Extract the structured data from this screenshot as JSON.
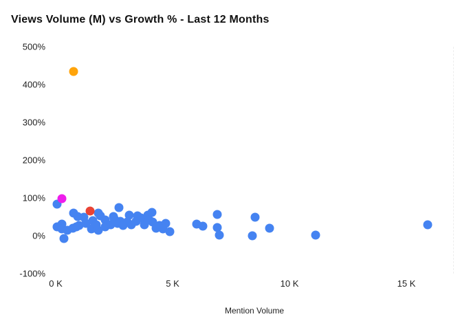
{
  "chart_data": {
    "type": "scatter",
    "title": "Views Volume (M) vs Growth % - Last 12 Months",
    "xlabel": "Mention Volume",
    "ylabel": "",
    "xlim": [
      0,
      17000
    ],
    "ylim": [
      -100,
      500
    ],
    "grid": "off",
    "legend": "none",
    "right_border_style": "dashed",
    "x_ticks": [
      {
        "value": 0,
        "label": "0 K"
      },
      {
        "value": 5000,
        "label": "5 K"
      },
      {
        "value": 10000,
        "label": "10 K"
      },
      {
        "value": 15000,
        "label": "15 K"
      }
    ],
    "y_ticks": [
      {
        "value": 500,
        "label": "500%"
      },
      {
        "value": 400,
        "label": "400%"
      },
      {
        "value": 300,
        "label": "300%"
      },
      {
        "value": 200,
        "label": "200%"
      },
      {
        "value": 100,
        "label": "100%"
      },
      {
        "value": 0,
        "label": "0%"
      },
      {
        "value": -100,
        "label": "-100%"
      }
    ],
    "series": [
      {
        "name": "topics-default",
        "color": "#4583F1",
        "points": [
          [
            60,
            83
          ],
          [
            250,
            31
          ],
          [
            60,
            24
          ],
          [
            260,
            18
          ],
          [
            500,
            15
          ],
          [
            730,
            20
          ],
          [
            350,
            -7
          ],
          [
            760,
            60
          ],
          [
            880,
            24
          ],
          [
            940,
            51
          ],
          [
            1000,
            28
          ],
          [
            1200,
            49
          ],
          [
            1290,
            33
          ],
          [
            1520,
            18
          ],
          [
            1820,
            60
          ],
          [
            1900,
            52
          ],
          [
            1820,
            15
          ],
          [
            1580,
            40
          ],
          [
            1730,
            30
          ],
          [
            2110,
            42
          ],
          [
            2110,
            24
          ],
          [
            2350,
            29
          ],
          [
            2490,
            46
          ],
          [
            2640,
            33
          ],
          [
            2700,
            75
          ],
          [
            2460,
            51
          ],
          [
            2760,
            39
          ],
          [
            2870,
            28
          ],
          [
            3140,
            55
          ],
          [
            3050,
            37
          ],
          [
            3230,
            30
          ],
          [
            3430,
            39
          ],
          [
            3500,
            52
          ],
          [
            3640,
            48
          ],
          [
            3780,
            29
          ],
          [
            3930,
            55
          ],
          [
            4000,
            42
          ],
          [
            4130,
            61
          ],
          [
            4160,
            37
          ],
          [
            4290,
            20
          ],
          [
            4430,
            28
          ],
          [
            4720,
            33
          ],
          [
            4600,
            18
          ],
          [
            4870,
            11
          ],
          [
            6040,
            31
          ],
          [
            6300,
            26
          ],
          [
            6920,
            57
          ],
          [
            6920,
            22
          ],
          [
            7010,
            2
          ],
          [
            8530,
            50
          ],
          [
            8410,
            0
          ],
          [
            9150,
            20
          ],
          [
            11120,
            2
          ],
          [
            15900,
            29
          ]
        ]
      },
      {
        "name": "topic-highlight-red",
        "color": "#E94335",
        "points": [
          [
            1470,
            66
          ]
        ]
      },
      {
        "name": "topic-highlight-magenta",
        "color": "#EE1DEB",
        "points": [
          [
            250,
            98
          ]
        ]
      },
      {
        "name": "topic-highlight-orange",
        "color": "#FFA40B",
        "points": [
          [
            760,
            435
          ]
        ]
      }
    ]
  },
  "colors": {
    "background": "#FFFFFF",
    "title_text": "#111111",
    "tick_text": "#1F1F1F",
    "dashed_border": "#EDEDED",
    "point_default": "#4583F1",
    "point_orange": "#FFA40B",
    "point_magenta": "#EE1DEB",
    "point_red": "#E94335"
  }
}
